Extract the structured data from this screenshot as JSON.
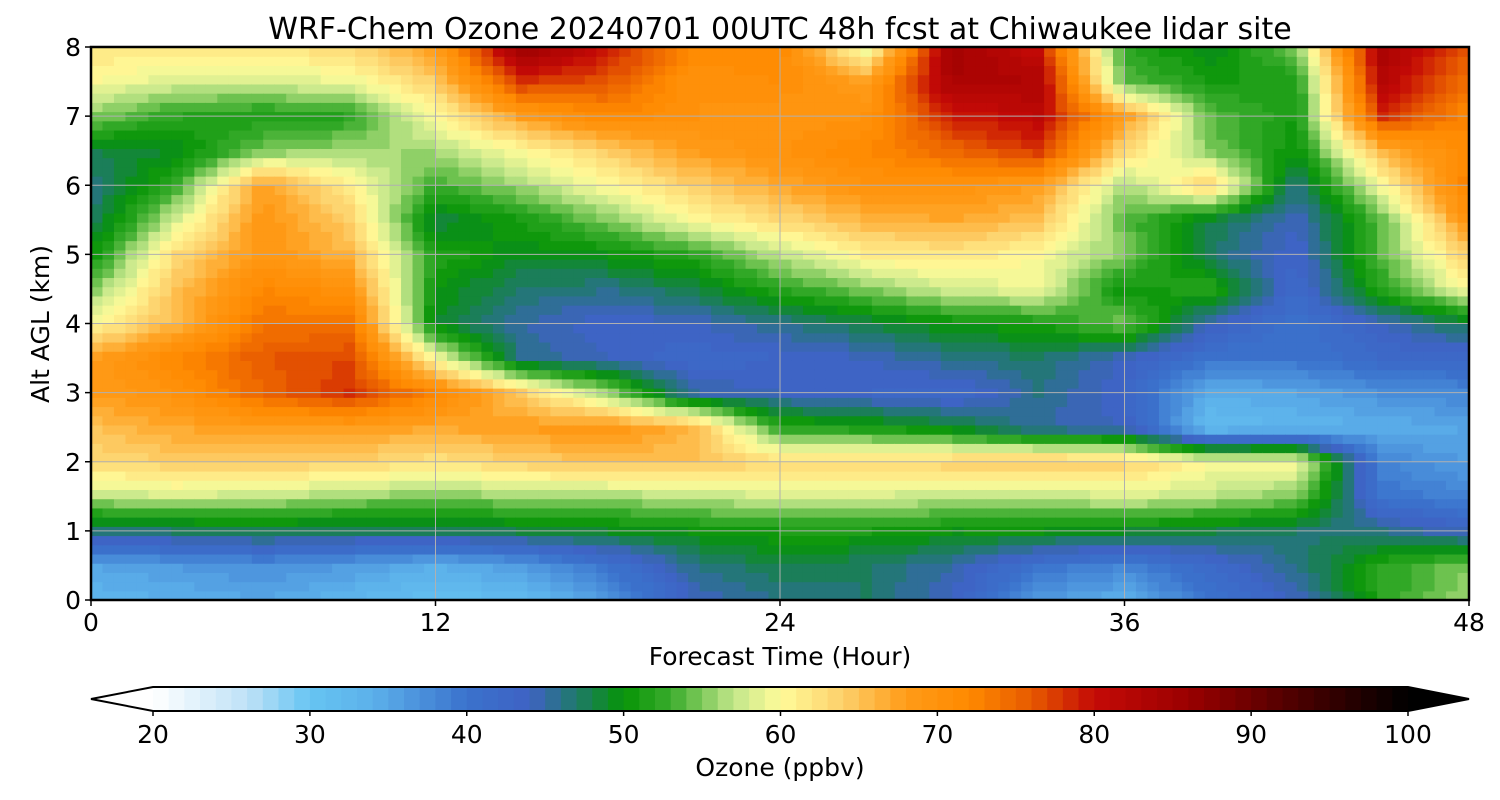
{
  "chart_data": {
    "type": "heatmap",
    "title": "WRF-Chem Ozone  20240701 00UTC 48h fcst at Chiwaukee lidar site",
    "xlabel": "Forecast Time (Hour)",
    "ylabel": "Alt AGL (km)",
    "xlim": [
      0,
      48
    ],
    "ylim": [
      0,
      8
    ],
    "xticks": [
      0,
      12,
      24,
      36,
      48
    ],
    "yticks": [
      0,
      1,
      2,
      3,
      4,
      5,
      6,
      7,
      8
    ],
    "grid": true,
    "x": [
      0,
      3,
      6,
      9,
      12,
      15,
      18,
      21,
      24,
      27,
      30,
      33,
      36,
      39,
      42,
      45,
      48
    ],
    "y": [
      0,
      0.5,
      1,
      1.5,
      2,
      2.5,
      3,
      3.5,
      4,
      4.5,
      5,
      5.5,
      6,
      6.5,
      7,
      7.5,
      8
    ],
    "z": [
      [
        33,
        34,
        35,
        33,
        31,
        32,
        36,
        44,
        46,
        47,
        44,
        36,
        34,
        40,
        44,
        52,
        56
      ],
      [
        35,
        36,
        37,
        36,
        34,
        36,
        40,
        46,
        48,
        47,
        45,
        40,
        38,
        42,
        46,
        52,
        55
      ],
      [
        46,
        47,
        48,
        47,
        47,
        48,
        49,
        50,
        51,
        51,
        50,
        50,
        49,
        48,
        47,
        46,
        44
      ],
      [
        57,
        58,
        57,
        56,
        55,
        56,
        56,
        57,
        58,
        58,
        57,
        57,
        58,
        57,
        55,
        40,
        38
      ],
      [
        63,
        64,
        64,
        64,
        62,
        64,
        65,
        65,
        63,
        63,
        64,
        65,
        64,
        60,
        60,
        38,
        36
      ],
      [
        65,
        67,
        68,
        68,
        67,
        68,
        69,
        66,
        52,
        51,
        49,
        45,
        44,
        32,
        33,
        34,
        35
      ],
      [
        68,
        70,
        75,
        78,
        72,
        64,
        56,
        45,
        44,
        43,
        42,
        46,
        43,
        34,
        35,
        37,
        38
      ],
      [
        68,
        72,
        76,
        77,
        60,
        46,
        44,
        42,
        43,
        44,
        46,
        47,
        44,
        40,
        40,
        42,
        42
      ],
      [
        60,
        66,
        74,
        74,
        49,
        45,
        43,
        44,
        46,
        48,
        50,
        51,
        55,
        44,
        40,
        44,
        48
      ],
      [
        55,
        65,
        72,
        70,
        50,
        47,
        46,
        48,
        52,
        55,
        58,
        59,
        50,
        52,
        42,
        52,
        60
      ],
      [
        50,
        63,
        69,
        66,
        52,
        49,
        50,
        52,
        57,
        61,
        62,
        60,
        55,
        47,
        43,
        54,
        64
      ],
      [
        47,
        58,
        69,
        64,
        48,
        51,
        55,
        60,
        63,
        66,
        67,
        65,
        54,
        48,
        44,
        54,
        70
      ],
      [
        46,
        53,
        68,
        61,
        53,
        56,
        60,
        64,
        67,
        70,
        70,
        68,
        56,
        64,
        46,
        60,
        73
      ],
      [
        48,
        49,
        55,
        56,
        56,
        60,
        64,
        68,
        70,
        72,
        75,
        78,
        63,
        55,
        50,
        66,
        72
      ],
      [
        55,
        52,
        51,
        52,
        60,
        68,
        72,
        70,
        69,
        70,
        79,
        81,
        68,
        54,
        51,
        78,
        72
      ],
      [
        60,
        58,
        58,
        59,
        64,
        78,
        76,
        70,
        71,
        68,
        84,
        83,
        54,
        51,
        51,
        82,
        74
      ],
      [
        62,
        62,
        62,
        63,
        68,
        86,
        80,
        72,
        72,
        58,
        85,
        80,
        52,
        49,
        55,
        84,
        76
      ]
    ],
    "colorbar": {
      "label": "Ozone  (ppbv)",
      "min": 20,
      "max": 100,
      "step": 1,
      "ticks": [
        20,
        30,
        40,
        50,
        60,
        70,
        80,
        90,
        100
      ],
      "extend": "both",
      "color_stops": [
        [
          20,
          "#ffffff"
        ],
        [
          26,
          "#bfe2f7"
        ],
        [
          30,
          "#66c4f2"
        ],
        [
          34,
          "#5cb0ea"
        ],
        [
          40,
          "#3a72cc"
        ],
        [
          44,
          "#3f62c4"
        ],
        [
          47,
          "#1f7a6a"
        ],
        [
          50,
          "#069406"
        ],
        [
          53,
          "#3aac2c"
        ],
        [
          57,
          "#c2e68a"
        ],
        [
          60,
          "#fffb9a"
        ],
        [
          64,
          "#fdcf6a"
        ],
        [
          68,
          "#ff9b18"
        ],
        [
          72,
          "#ff8a00"
        ],
        [
          76,
          "#e75a00"
        ],
        [
          80,
          "#c40a06"
        ],
        [
          86,
          "#9a0000"
        ],
        [
          93,
          "#4a0000"
        ],
        [
          100,
          "#000000"
        ]
      ]
    }
  }
}
